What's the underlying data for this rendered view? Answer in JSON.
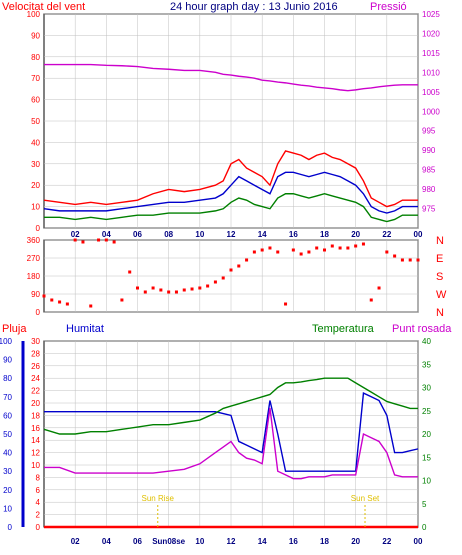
{
  "title": "24 hour graph day : 13 Junio 2016",
  "colors": {
    "red": "#ff0000",
    "blue": "#0000cc",
    "green": "#008000",
    "magenta": "#cc00cc",
    "grid": "#c0c0c0",
    "hour_axis": "#000080",
    "sun": "#e0c000"
  },
  "x_labels": [
    "02",
    "04",
    "06",
    "08",
    "10",
    "12",
    "14",
    "16",
    "18",
    "20",
    "22",
    "00"
  ],
  "chart_data": [
    {
      "type": "line",
      "name": "wind-pressure",
      "left_axis_label": "Velocitat del vent",
      "right_axis_label": "Pressió",
      "left_ticks": [
        "0",
        "10",
        "20",
        "30",
        "40",
        "50",
        "60",
        "70",
        "80",
        "90",
        "100"
      ],
      "right_ticks": [
        "975",
        "980",
        "985",
        "990",
        "995",
        "1000",
        "1005",
        "1010",
        "1015",
        "1020",
        "1025"
      ],
      "ylim_left": [
        0,
        100
      ],
      "ylim_right": [
        970,
        1025
      ],
      "x_hours": [
        0,
        1,
        2,
        3,
        4,
        5,
        6,
        7,
        8,
        9,
        10,
        11,
        11.5,
        12,
        12.5,
        13,
        13.5,
        14,
        14.5,
        15,
        15.5,
        16,
        16.5,
        17,
        17.5,
        18,
        18.5,
        19,
        19.5,
        20,
        20.5,
        21,
        21.5,
        22,
        22.5,
        23,
        23.5,
        24
      ],
      "series": [
        {
          "color": "red",
          "values": [
            13,
            12,
            11,
            12,
            11,
            12,
            13,
            16,
            18,
            17,
            18,
            20,
            22,
            30,
            32,
            28,
            26,
            24,
            20,
            30,
            36,
            35,
            34,
            32,
            34,
            35,
            33,
            32,
            30,
            28,
            22,
            14,
            12,
            10,
            11,
            13,
            13,
            13
          ]
        },
        {
          "color": "blue",
          "values": [
            9,
            8,
            8,
            8,
            8,
            9,
            10,
            11,
            12,
            12,
            13,
            14,
            16,
            20,
            24,
            22,
            20,
            18,
            16,
            24,
            26,
            26,
            25,
            24,
            25,
            26,
            25,
            24,
            22,
            20,
            16,
            10,
            8,
            7,
            8,
            10,
            10,
            10
          ]
        },
        {
          "color": "green",
          "values": [
            5,
            5,
            4,
            5,
            4,
            5,
            6,
            6,
            7,
            7,
            7,
            8,
            9,
            12,
            14,
            13,
            11,
            10,
            9,
            14,
            16,
            16,
            15,
            14,
            15,
            16,
            15,
            14,
            13,
            12,
            10,
            5,
            4,
            3,
            4,
            6,
            6,
            6
          ]
        },
        {
          "color": "magenta",
          "axis": "right",
          "values": [
            1012,
            1012,
            1012,
            1012,
            1011.8,
            1011.7,
            1011.5,
            1011,
            1010.8,
            1010.5,
            1010.5,
            1010,
            1009.5,
            1009.3,
            1009,
            1008.8,
            1008.5,
            1008,
            1007.8,
            1007.5,
            1007.3,
            1007,
            1006.7,
            1006.5,
            1006.2,
            1006,
            1005.8,
            1005.5,
            1005.3,
            1005.5,
            1005.8,
            1006,
            1006.3,
            1006.5,
            1006.7,
            1006.8,
            1006.8,
            1006.8
          ]
        }
      ]
    },
    {
      "type": "scatter",
      "name": "wind-direction",
      "left_ticks": [
        "0",
        "90",
        "180",
        "270",
        "360"
      ],
      "right_ticks": [
        "N",
        "W",
        "S",
        "E",
        "N"
      ],
      "ylim": [
        0,
        360
      ],
      "x_hours": [
        0,
        0.5,
        1,
        1.5,
        2,
        2.5,
        3,
        3.5,
        4,
        4.5,
        5,
        5.5,
        6,
        6.5,
        7,
        7.5,
        8,
        8.5,
        9,
        9.5,
        10,
        10.5,
        11,
        11.5,
        12,
        12.5,
        13,
        13.5,
        14,
        14.5,
        15,
        15.5,
        16,
        16.5,
        17,
        17.5,
        18,
        18.5,
        19,
        19.5,
        20,
        20.5,
        21,
        21.5,
        22,
        22.5,
        23,
        23.5,
        24
      ],
      "series": [
        {
          "color": "red",
          "values": [
            80,
            60,
            50,
            40,
            360,
            350,
            30,
            360,
            360,
            350,
            60,
            200,
            120,
            100,
            120,
            110,
            100,
            100,
            110,
            115,
            120,
            130,
            150,
            170,
            210,
            230,
            260,
            300,
            310,
            320,
            300,
            40,
            310,
            290,
            300,
            320,
            310,
            330,
            320,
            320,
            330,
            340,
            60,
            120,
            300,
            280,
            260,
            260,
            260
          ]
        }
      ]
    },
    {
      "type": "line",
      "name": "humidity-temperature",
      "labels": {
        "rain": "Pluja",
        "humidity": "Humitat",
        "temperature": "Temperatura",
        "dewpoint": "Punt rosada"
      },
      "rain_ticks": [
        "0",
        "10",
        "20",
        "30",
        "40",
        "50",
        "60",
        "70",
        "80",
        "90",
        "100"
      ],
      "hum_ticks": [
        "0",
        "2",
        "4",
        "6",
        "8",
        "10",
        "12",
        "14",
        "16",
        "18",
        "20",
        "22",
        "24",
        "26",
        "28",
        "30"
      ],
      "temp_ticks": [
        "0",
        "5",
        "10",
        "15",
        "20",
        "25",
        "30",
        "35",
        "40"
      ],
      "ylim_hum": [
        0,
        100
      ],
      "ylim_temp": [
        0,
        40
      ],
      "x_hours": [
        0,
        1,
        2,
        3,
        4,
        5,
        6,
        7,
        8,
        9,
        10,
        11,
        11.5,
        12,
        12.5,
        13,
        13.5,
        14,
        14.5,
        15,
        15.5,
        16,
        16.5,
        17,
        17.5,
        18,
        18.5,
        19,
        19.5,
        20,
        20.5,
        21,
        21.5,
        22,
        22.5,
        23,
        23.5,
        24
      ],
      "series": [
        {
          "color": "blue",
          "name": "humidity",
          "values": [
            62,
            62,
            62,
            62,
            62,
            62,
            62,
            62,
            62,
            62,
            62,
            62,
            61,
            60,
            46,
            44,
            42,
            40,
            68,
            50,
            30,
            30,
            30,
            30,
            30,
            30,
            30,
            30,
            30,
            30,
            72,
            70,
            68,
            60,
            40,
            40,
            41,
            42
          ]
        },
        {
          "color": "green",
          "name": "temperature",
          "axis": "temp",
          "values": [
            21,
            20,
            20,
            20.5,
            20.5,
            21,
            21.5,
            22,
            22,
            22.5,
            23,
            24.5,
            25.5,
            26,
            26.5,
            27,
            27.5,
            28,
            28.5,
            30,
            31,
            31,
            31.2,
            31.5,
            31.7,
            32,
            32,
            32,
            32,
            31,
            30,
            29,
            28,
            27,
            26.5,
            26,
            25.5,
            25.5
          ]
        },
        {
          "color": "magenta",
          "name": "dewpoint",
          "values": [
            32,
            32,
            29,
            29,
            29,
            29,
            29,
            29,
            30,
            31,
            34,
            40,
            43,
            46,
            40,
            37,
            36,
            34,
            64,
            30,
            28,
            26,
            26,
            27,
            27,
            27,
            28,
            28,
            28,
            28,
            50,
            48,
            46,
            40,
            28,
            27,
            27,
            27
          ]
        },
        {
          "color": "red",
          "name": "rain",
          "values": [
            0,
            0,
            0,
            0,
            0,
            0,
            0,
            0,
            0,
            0,
            0,
            0,
            0,
            0,
            0,
            0,
            0,
            0,
            0,
            0,
            0,
            0,
            0,
            0,
            0,
            0,
            0,
            0,
            0,
            0,
            0,
            0,
            0,
            0,
            0,
            0,
            0,
            0
          ]
        }
      ]
    }
  ],
  "sunrise_label": "Sun Rise",
  "sunset_label": "Sun Set",
  "sunrise_hour": 7.3,
  "sunset_hour": 20.6,
  "sunrise_tick": "Sun08se"
}
